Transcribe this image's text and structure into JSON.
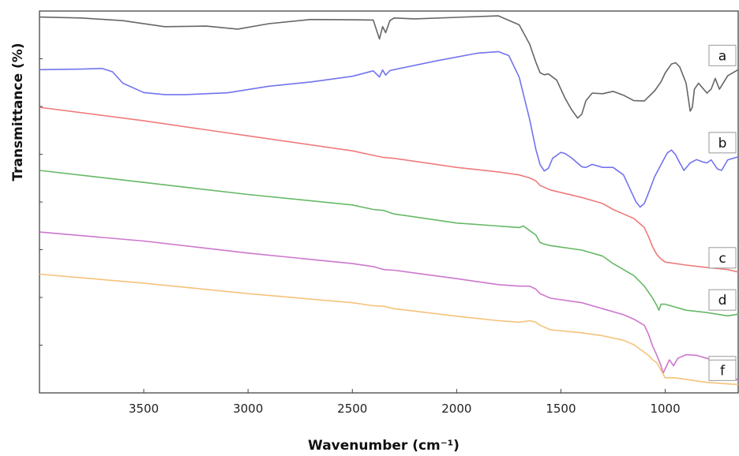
{
  "chart_data": {
    "type": "line",
    "xlabel": "Wavenumber (cm⁻¹)",
    "ylabel": "Transmittance (%)",
    "xlim": [
      4000,
      650
    ],
    "x_ticks": [
      3500,
      3000,
      2500,
      2000,
      1500,
      1000
    ],
    "y_ticks_labeled": false,
    "grid": false,
    "series": [
      {
        "name": "a",
        "color": "#666666",
        "x": [
          4000,
          3800,
          3600,
          3400,
          3200,
          3050,
          2900,
          2700,
          2500,
          2400,
          2370,
          2355,
          2340,
          2320,
          2300,
          2200,
          2000,
          1800,
          1700,
          1650,
          1620,
          1600,
          1580,
          1560,
          1520,
          1480,
          1450,
          1420,
          1400,
          1380,
          1350,
          1300,
          1250,
          1200,
          1150,
          1100,
          1050,
          1020,
          1000,
          970,
          950,
          930,
          900,
          880,
          870,
          860,
          840,
          800,
          780,
          760,
          740,
          700,
          650
        ],
        "y": [
          0,
          0.3,
          1.2,
          3.2,
          3.0,
          4.0,
          2.2,
          0.8,
          0.9,
          1.0,
          7.3,
          3.2,
          5.2,
          1.2,
          0.3,
          0.6,
          0.1,
          -0.4,
          2.6,
          9.0,
          15.0,
          18.5,
          19.2,
          18.9,
          21.0,
          27.0,
          30.7,
          33.6,
          32.3,
          27.8,
          25.3,
          25.5,
          24.7,
          26.0,
          27.8,
          27.9,
          24.5,
          21.5,
          18.6,
          15.6,
          15.2,
          16.6,
          22.0,
          31.3,
          30.0,
          24.0,
          22.0,
          25.3,
          24.0,
          20.4,
          24.0,
          19.5,
          17.5
        ]
      },
      {
        "name": "b",
        "color": "#7373ee",
        "x": [
          4000,
          3800,
          3700,
          3650,
          3600,
          3500,
          3400,
          3300,
          3100,
          2900,
          2700,
          2500,
          2400,
          2370,
          2355,
          2340,
          2320,
          2300,
          2100,
          1900,
          1800,
          1750,
          1700,
          1650,
          1620,
          1600,
          1580,
          1560,
          1540,
          1500,
          1480,
          1450,
          1400,
          1380,
          1350,
          1300,
          1250,
          1200,
          1160,
          1140,
          1120,
          1100,
          1080,
          1050,
          1000,
          990,
          970,
          950,
          930,
          910,
          880,
          850,
          820,
          800,
          780,
          750,
          730,
          700,
          650
        ],
        "y": [
          17.5,
          17.3,
          17.1,
          18.2,
          22.0,
          25.1,
          25.8,
          25.8,
          25.2,
          23.0,
          21.6,
          19.7,
          17.9,
          19.9,
          17.6,
          19.3,
          17.8,
          17.5,
          14.6,
          12.0,
          11.5,
          12.8,
          20.0,
          34.0,
          44.0,
          49.0,
          51.2,
          50.3,
          47.0,
          45.0,
          45.4,
          46.8,
          49.8,
          50.0,
          49.0,
          50.0,
          50.0,
          52.5,
          58.5,
          61.5,
          63.2,
          62.0,
          58.5,
          53.0,
          46.5,
          45.2,
          44.2,
          45.8,
          48.5,
          51.0,
          48.5,
          47.4,
          48.2,
          48.5,
          47.5,
          50.5,
          51.0,
          47.5,
          46.5
        ]
      },
      {
        "name": "c",
        "color": "#f07a7a",
        "x": [
          4000,
          3500,
          3000,
          2500,
          2400,
          2350,
          2300,
          2000,
          1800,
          1700,
          1650,
          1620,
          1600,
          1550,
          1400,
          1300,
          1250,
          1200,
          1150,
          1100,
          1080,
          1060,
          1040,
          1020,
          1000,
          900,
          800,
          700,
          650
        ],
        "y": [
          30.0,
          34.5,
          39.5,
          44.5,
          46.0,
          46.7,
          47.0,
          50.0,
          51.5,
          52.5,
          53.5,
          54.5,
          56.0,
          57.5,
          60.0,
          62.0,
          64.0,
          65.5,
          67.0,
          70.0,
          73.0,
          76.5,
          79.0,
          80.5,
          81.5,
          82.5,
          83.3,
          84.0,
          84.8
        ]
      },
      {
        "name": "d",
        "color": "#66b866",
        "x": [
          4000,
          3500,
          3000,
          2500,
          2400,
          2350,
          2300,
          2000,
          1800,
          1700,
          1680,
          1650,
          1620,
          1600,
          1580,
          1550,
          1400,
          1300,
          1250,
          1200,
          1150,
          1100,
          1080,
          1060,
          1040,
          1030,
          1020,
          1000,
          900,
          800,
          700,
          650
        ],
        "y": [
          51.0,
          55.0,
          59.0,
          62.5,
          64.0,
          64.3,
          65.5,
          68.5,
          69.5,
          70.0,
          69.5,
          71.0,
          72.5,
          75.0,
          75.5,
          76.0,
          77.5,
          79.5,
          82.0,
          84.0,
          86.0,
          89.5,
          91.5,
          93.5,
          96.0,
          97.5,
          95.5,
          95.5,
          97.5,
          98.3,
          99.4,
          98.8
        ]
      },
      {
        "name": "e",
        "color": "#cc77cc",
        "x": [
          4000,
          3500,
          3000,
          2500,
          2400,
          2350,
          2300,
          2000,
          1800,
          1700,
          1650,
          1620,
          1600,
          1550,
          1400,
          1300,
          1200,
          1150,
          1100,
          1080,
          1060,
          1040,
          1020,
          1010,
          1000,
          980,
          960,
          940,
          900,
          850,
          800,
          750,
          700,
          680,
          650
        ],
        "y": [
          71.5,
          74.5,
          78.5,
          82.0,
          83.0,
          84.0,
          84.2,
          87.0,
          89.0,
          89.5,
          89.5,
          90.5,
          92.0,
          93.5,
          95.0,
          97.0,
          99.0,
          100.5,
          102.5,
          105.5,
          109.5,
          112.5,
          116.0,
          118.5,
          117.0,
          114.0,
          116.0,
          113.5,
          112.3,
          112.5,
          113.5,
          114.5,
          117.0,
          119.0,
          121.0
        ]
      },
      {
        "name": "f",
        "color": "#f5c27a",
        "x": [
          4000,
          3500,
          3000,
          2500,
          2400,
          2350,
          2300,
          2000,
          1800,
          1700,
          1650,
          1620,
          1600,
          1550,
          1400,
          1300,
          1200,
          1150,
          1100,
          1080,
          1060,
          1040,
          1020,
          1000,
          950,
          900,
          800,
          700,
          650
        ],
        "y": [
          85.5,
          88.5,
          92.0,
          95.0,
          96.0,
          96.2,
          97.0,
          99.5,
          101.0,
          101.5,
          101.0,
          101.5,
          102.5,
          104.0,
          105.0,
          106.0,
          107.5,
          109.0,
          111.5,
          112.5,
          114.0,
          115.0,
          117.5,
          120.0,
          120.0,
          120.5,
          121.5,
          122.0,
          122.2
        ]
      }
    ]
  }
}
